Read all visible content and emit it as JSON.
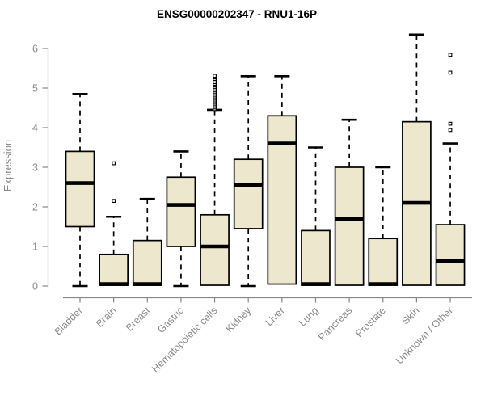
{
  "chart_data": {
    "type": "boxplot",
    "title": "ENSG00000202347 - RNU1-16P",
    "ylabel": "Expression",
    "xlabel": "",
    "ylim": [
      0,
      6
    ],
    "yticks": [
      0,
      1,
      2,
      3,
      4,
      5,
      6
    ],
    "grid": false,
    "legend": null,
    "categories": [
      "Bladder",
      "Brain",
      "Breast",
      "Gastric",
      "Hematopoietic cells",
      "Kidney",
      "Liver",
      "Lung",
      "Pancreas",
      "Prostate",
      "Skin",
      "Unknown / Other"
    ],
    "series": [
      {
        "name": "Bladder",
        "whisker_low": 0,
        "q1": 1.5,
        "median": 2.6,
        "q3": 3.4,
        "whisker_high": 4.85,
        "outliers": []
      },
      {
        "name": "Brain",
        "whisker_low": 0.02,
        "q1": 0.02,
        "median": 0.05,
        "q3": 0.8,
        "whisker_high": 1.75,
        "outliers": [
          2.15,
          3.1
        ]
      },
      {
        "name": "Breast",
        "whisker_low": 0.02,
        "q1": 0.02,
        "median": 0.05,
        "q3": 1.15,
        "whisker_high": 2.2,
        "outliers": []
      },
      {
        "name": "Gastric",
        "whisker_low": 0,
        "q1": 1.0,
        "median": 2.05,
        "q3": 2.75,
        "whisker_high": 3.4,
        "outliers": []
      },
      {
        "name": "Hematopoietic cells",
        "whisker_low": 0.02,
        "q1": 0.02,
        "median": 1.0,
        "q3": 1.8,
        "whisker_high": 4.45,
        "outliers": [
          4.47,
          4.51,
          4.55,
          4.59,
          4.63,
          4.67,
          4.71,
          4.75,
          4.79,
          4.83,
          4.87,
          4.91,
          4.95,
          4.99,
          5.03,
          5.07,
          5.11,
          5.15,
          5.19,
          5.23,
          5.27,
          5.31
        ]
      },
      {
        "name": "Kidney",
        "whisker_low": 0,
        "q1": 1.45,
        "median": 2.55,
        "q3": 3.2,
        "whisker_high": 5.3,
        "outliers": []
      },
      {
        "name": "Liver",
        "whisker_low": 0.05,
        "q1": 0.05,
        "median": 3.6,
        "q3": 4.3,
        "whisker_high": 5.3,
        "outliers": []
      },
      {
        "name": "Lung",
        "whisker_low": 0.02,
        "q1": 0.02,
        "median": 0.05,
        "q3": 1.4,
        "whisker_high": 3.5,
        "outliers": []
      },
      {
        "name": "Pancreas",
        "whisker_low": 0.02,
        "q1": 0.02,
        "median": 1.7,
        "q3": 3.0,
        "whisker_high": 4.2,
        "outliers": []
      },
      {
        "name": "Prostate",
        "whisker_low": 0.02,
        "q1": 0.02,
        "median": 0.05,
        "q3": 1.2,
        "whisker_high": 3.0,
        "outliers": []
      },
      {
        "name": "Skin",
        "whisker_low": 0.02,
        "q1": 0.02,
        "median": 2.1,
        "q3": 4.15,
        "whisker_high": 6.35,
        "outliers": []
      },
      {
        "name": "Unknown / Other",
        "whisker_low": 0.02,
        "q1": 0.02,
        "median": 0.63,
        "q3": 1.55,
        "whisker_high": 3.6,
        "outliers": [
          3.94,
          4.1,
          5.39,
          5.84
        ]
      }
    ],
    "colors": {
      "box_fill": "#EDE8CD",
      "box_border": "#000000",
      "median": "#000000",
      "whisker": "#000000",
      "outlier": "#000000",
      "axis": "#888888",
      "tick_label": "#8a8a8a",
      "title": "#000000",
      "background": "#ffffff"
    }
  }
}
